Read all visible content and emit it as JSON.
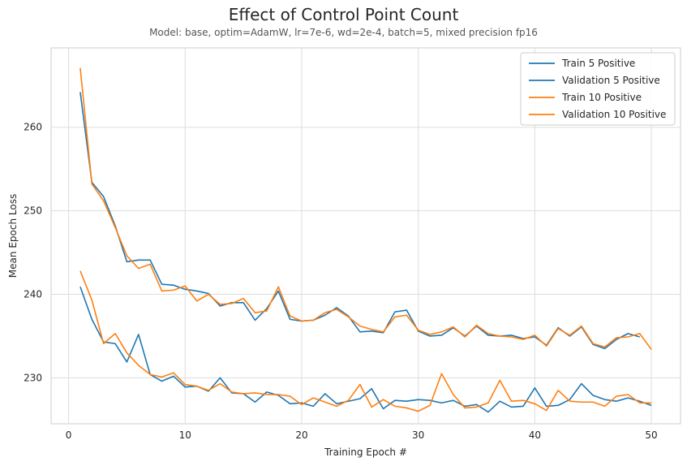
{
  "title": "Effect of Control Point Count",
  "subtitle": "Model: base, optim=AdamW, lr=7e-6, wd=2e-4, batch=5, mixed precision fp16",
  "chart_data": {
    "type": "line",
    "title": "Effect of Control Point Count",
    "subtitle": "Model: base, optim=AdamW, lr=7e-6, wd=2e-4, batch=5, mixed precision fp16",
    "xlabel": "Training Epoch #",
    "ylabel": "Mean Epoch Loss",
    "xlim": [
      -1.5,
      52.5
    ],
    "ylim": [
      224.5,
      269.5
    ],
    "xticks": [
      0,
      10,
      20,
      30,
      40,
      50
    ],
    "yticks": [
      230,
      240,
      250,
      260
    ],
    "grid": true,
    "legend_position": "top-right",
    "x": [
      1,
      2,
      3,
      4,
      5,
      6,
      7,
      8,
      9,
      10,
      11,
      12,
      13,
      14,
      15,
      16,
      17,
      18,
      19,
      20,
      21,
      22,
      23,
      24,
      25,
      26,
      27,
      28,
      29,
      30,
      31,
      32,
      33,
      34,
      35,
      36,
      37,
      38,
      39,
      40,
      41,
      42,
      43,
      44,
      45,
      46,
      47,
      48,
      49,
      50
    ],
    "series": [
      {
        "name": "Train 5 Positive",
        "color": "#1f77b4",
        "values": [
          264.2,
          253.4,
          251.7,
          248.2,
          243.9,
          244.1,
          244.1,
          241.2,
          241.1,
          240.6,
          240.4,
          240.1,
          238.6,
          239.0,
          239.0,
          236.9,
          238.3,
          240.4,
          237.0,
          236.8,
          236.9,
          237.5,
          238.4,
          237.4,
          235.5,
          235.6,
          235.4,
          237.9,
          238.1,
          235.6,
          235.0,
          235.1,
          236.0,
          235.0,
          236.2,
          235.1,
          235.0,
          235.1,
          234.7,
          234.9,
          233.9,
          236.0,
          235.0,
          236.1,
          234.0,
          233.5,
          234.6,
          235.3,
          234.9,
          null
        ]
      },
      {
        "name": "Validation 5 Positive",
        "color": "#1f77b4",
        "values": [
          240.9,
          237.0,
          234.3,
          234.1,
          231.9,
          235.2,
          230.4,
          229.6,
          230.2,
          228.9,
          229.0,
          228.4,
          230.0,
          228.2,
          228.1,
          227.1,
          228.3,
          227.9,
          226.9,
          227.0,
          226.6,
          228.1,
          226.9,
          227.2,
          227.5,
          228.7,
          226.3,
          227.3,
          227.2,
          227.4,
          227.3,
          227.0,
          227.3,
          226.6,
          226.8,
          225.9,
          227.2,
          226.5,
          226.6,
          228.8,
          226.6,
          226.7,
          227.4,
          229.3,
          227.9,
          227.4,
          227.2,
          227.6,
          227.2,
          226.7
        ]
      },
      {
        "name": "Train 10 Positive",
        "color": "#ff7f0e",
        "values": [
          267.1,
          253.2,
          251.2,
          248.0,
          244.6,
          243.1,
          243.6,
          240.4,
          240.5,
          241.0,
          239.2,
          240.0,
          238.8,
          238.9,
          239.5,
          237.8,
          238.0,
          240.9,
          237.4,
          236.8,
          236.9,
          237.8,
          238.2,
          237.3,
          236.2,
          235.8,
          235.5,
          237.3,
          237.5,
          235.7,
          235.2,
          235.5,
          236.1,
          234.9,
          236.3,
          235.3,
          235.0,
          234.9,
          234.6,
          235.1,
          233.8,
          235.9,
          235.1,
          236.2,
          234.1,
          233.7,
          234.8,
          234.9,
          235.3,
          233.4
        ]
      },
      {
        "name": "Validation 10 Positive",
        "color": "#ff7f0e",
        "values": [
          242.8,
          239.3,
          234.1,
          235.3,
          233.0,
          231.5,
          230.4,
          230.1,
          230.6,
          229.2,
          229.0,
          228.5,
          229.3,
          228.3,
          228.1,
          228.2,
          228.0,
          228.0,
          227.8,
          226.8,
          227.6,
          227.1,
          226.6,
          227.3,
          229.2,
          226.5,
          227.4,
          226.6,
          226.4,
          226.0,
          226.7,
          230.5,
          228.0,
          226.4,
          226.5,
          227.0,
          229.7,
          227.2,
          227.3,
          226.9,
          226.1,
          228.5,
          227.2,
          227.1,
          227.1,
          226.6,
          227.8,
          228.0,
          227.0,
          227.0
        ]
      }
    ]
  }
}
